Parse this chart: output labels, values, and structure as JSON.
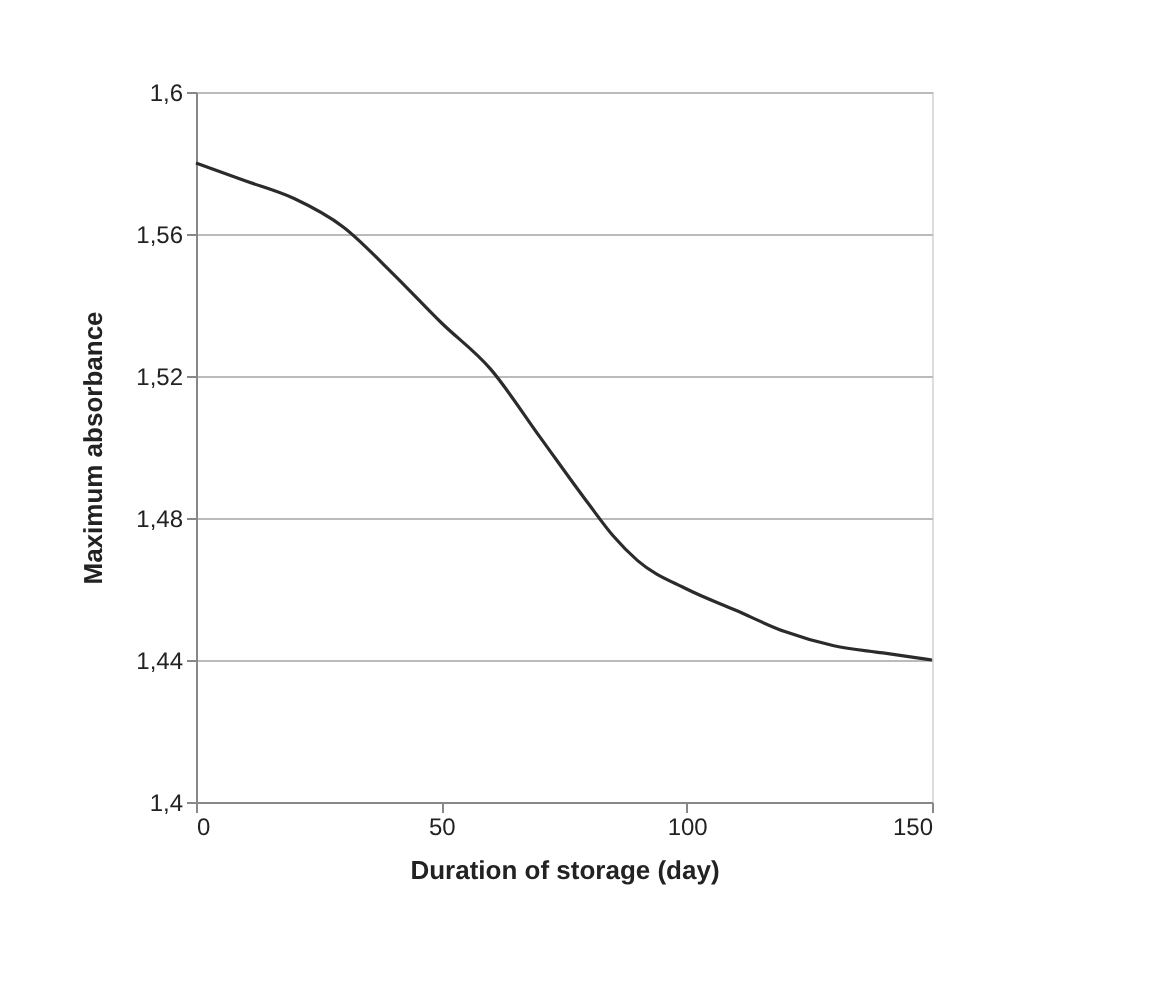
{
  "chart_data": {
    "type": "line",
    "xlabel": "Duration of storage (day)",
    "ylabel": "Maximum absorbance",
    "x": [
      0,
      10,
      20,
      30,
      40,
      50,
      60,
      70,
      80,
      85,
      90,
      100,
      110,
      120,
      130,
      140,
      150
    ],
    "series": [
      {
        "color": "#2b2b2b",
        "values": [
          1.58,
          1.575,
          1.57,
          1.562,
          1.549,
          1.535,
          1.522,
          1.503,
          1.484,
          1.475,
          1.468,
          1.46,
          1.454,
          1.448,
          1.444,
          1.442,
          1.44
        ]
      }
    ],
    "xlim": [
      0,
      150
    ],
    "xticks": [
      0,
      50,
      100,
      150
    ],
    "ylim": [
      1.4,
      1.6
    ],
    "yticks": [
      {
        "value": 1.4,
        "label": "1,4"
      },
      {
        "value": 1.44,
        "label": "1,44"
      },
      {
        "value": 1.48,
        "label": "1,48"
      },
      {
        "value": 1.52,
        "label": "1,52"
      },
      {
        "value": 1.56,
        "label": "1,56"
      },
      {
        "value": 1.6,
        "label": "1,6"
      }
    ],
    "grid": "y",
    "marker": "none",
    "line_style": "solid"
  }
}
